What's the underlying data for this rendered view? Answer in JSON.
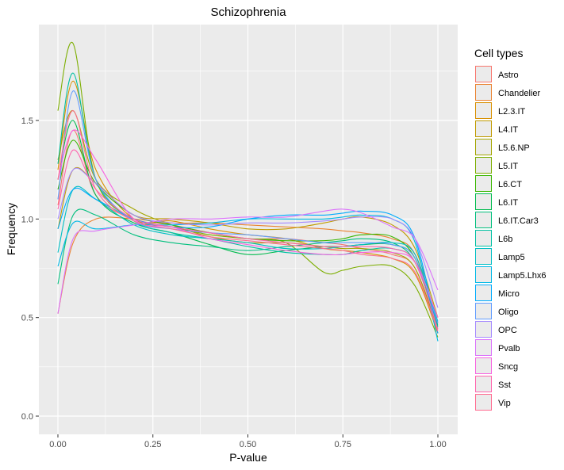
{
  "chart_data": {
    "type": "line",
    "title": "Schizophrenia",
    "xlabel": "P-value",
    "ylabel": "Frequency",
    "xlim": [
      0,
      1
    ],
    "ylim": [
      0,
      1.9
    ],
    "x_ticks": [
      "0.00",
      "0.25",
      "0.50",
      "0.75",
      "1.00"
    ],
    "y_ticks": [
      "0.0",
      "0.5",
      "1.0",
      "1.5"
    ],
    "grid": true,
    "legend_title": "Cell types",
    "legend_position": "right",
    "x": [
      0.0,
      0.04,
      0.1,
      0.2,
      0.3,
      0.4,
      0.5,
      0.6,
      0.7,
      0.75,
      0.8,
      0.88,
      0.94,
      1.0
    ],
    "series": [
      {
        "name": "Astro",
        "color": "#F8766D",
        "values": [
          1.07,
          1.45,
          1.12,
          1.0,
          0.97,
          0.93,
          0.9,
          0.9,
          0.88,
          0.87,
          0.85,
          0.82,
          0.75,
          0.42
        ]
      },
      {
        "name": "Chandelier",
        "color": "#EA8331",
        "values": [
          0.52,
          0.88,
          1.0,
          1.0,
          0.98,
          0.98,
          0.97,
          0.96,
          0.95,
          0.94,
          0.93,
          0.9,
          0.82,
          0.45
        ]
      },
      {
        "name": "L2.3.IT",
        "color": "#D89000",
        "values": [
          1.25,
          1.7,
          1.25,
          1.0,
          0.99,
          0.95,
          0.92,
          0.9,
          0.85,
          0.84,
          0.83,
          0.8,
          0.72,
          0.42
        ]
      },
      {
        "name": "L4.IT",
        "color": "#C09B00",
        "values": [
          0.95,
          1.25,
          1.18,
          1.02,
          1.0,
          0.98,
          0.95,
          0.95,
          0.98,
          1.0,
          1.01,
          0.97,
          0.85,
          0.5
        ]
      },
      {
        "name": "L5.6.NP",
        "color": "#A3A500",
        "values": [
          1.3,
          1.55,
          1.2,
          1.05,
          0.97,
          0.91,
          0.88,
          0.88,
          0.86,
          0.85,
          0.85,
          0.83,
          0.75,
          0.44
        ]
      },
      {
        "name": "L5.IT",
        "color": "#7CAE00",
        "values": [
          1.55,
          1.89,
          1.2,
          1.0,
          0.96,
          0.92,
          0.9,
          0.88,
          0.73,
          0.74,
          0.76,
          0.76,
          0.66,
          0.4
        ]
      },
      {
        "name": "L6.CT",
        "color": "#39B600",
        "values": [
          1.15,
          1.4,
          1.18,
          1.02,
          0.97,
          0.93,
          0.9,
          0.89,
          0.89,
          0.9,
          0.92,
          0.91,
          0.8,
          0.47
        ]
      },
      {
        "name": "L6.IT",
        "color": "#00BB4E",
        "values": [
          1.2,
          1.5,
          1.12,
          0.98,
          0.93,
          0.87,
          0.82,
          0.84,
          0.86,
          0.86,
          0.87,
          0.87,
          0.8,
          0.47
        ]
      },
      {
        "name": "L6.IT.Car3",
        "color": "#00BF7D",
        "values": [
          0.67,
          1.02,
          1.02,
          0.92,
          0.88,
          0.86,
          0.84,
          0.86,
          0.88,
          0.89,
          0.9,
          0.88,
          0.78,
          0.46
        ]
      },
      {
        "name": "L6b",
        "color": "#00C1A3",
        "values": [
          1.28,
          1.74,
          1.2,
          0.99,
          0.93,
          0.9,
          0.86,
          0.83,
          0.82,
          0.82,
          0.84,
          0.85,
          0.78,
          0.45
        ]
      },
      {
        "name": "Lamp5",
        "color": "#00BFC4",
        "values": [
          0.83,
          1.15,
          1.1,
          0.97,
          0.92,
          0.9,
          0.88,
          0.85,
          0.85,
          0.86,
          0.87,
          0.88,
          0.82,
          0.48
        ]
      },
      {
        "name": "Lamp5.Lhx6",
        "color": "#00B8E5",
        "values": [
          0.76,
          0.98,
          0.95,
          0.97,
          0.97,
          0.98,
          1.0,
          1.0,
          1.0,
          1.01,
          1.02,
          1.0,
          0.88,
          0.38
        ]
      },
      {
        "name": "Micro",
        "color": "#00ABFD",
        "values": [
          0.95,
          1.15,
          1.1,
          1.0,
          0.96,
          0.96,
          1.0,
          1.02,
          1.02,
          1.03,
          1.04,
          1.02,
          0.9,
          0.42
        ]
      },
      {
        "name": "Oligo",
        "color": "#619CFF",
        "values": [
          1.1,
          1.65,
          1.2,
          0.99,
          0.95,
          0.93,
          0.92,
          0.9,
          0.88,
          0.88,
          0.88,
          0.87,
          0.8,
          0.47
        ]
      },
      {
        "name": "OPC",
        "color": "#A58AFF",
        "values": [
          1.0,
          1.25,
          1.18,
          1.02,
          0.98,
          0.97,
          0.98,
          0.98,
          0.99,
          1.0,
          1.01,
          1.0,
          0.9,
          0.55
        ]
      },
      {
        "name": "Pvalb",
        "color": "#DB72FB",
        "values": [
          0.52,
          0.9,
          0.94,
          0.97,
          1.0,
          1.0,
          1.01,
          1.01,
          1.04,
          1.05,
          1.03,
          0.96,
          0.9,
          0.64
        ]
      },
      {
        "name": "Sncg",
        "color": "#F763E0",
        "values": [
          1.2,
          1.45,
          1.3,
          1.0,
          0.96,
          0.9,
          0.87,
          0.84,
          0.82,
          0.82,
          0.83,
          0.83,
          0.78,
          0.5
        ]
      },
      {
        "name": "Sst",
        "color": "#FF65AE",
        "values": [
          1.05,
          1.35,
          1.15,
          1.0,
          0.96,
          0.93,
          0.9,
          0.88,
          0.86,
          0.86,
          0.86,
          0.85,
          0.78,
          0.44
        ]
      },
      {
        "name": "Vip",
        "color": "#FF6C91",
        "values": [
          1.2,
          1.55,
          1.15,
          0.99,
          0.95,
          0.91,
          0.89,
          0.87,
          0.85,
          0.84,
          0.82,
          0.8,
          0.73,
          0.43
        ]
      }
    ]
  }
}
